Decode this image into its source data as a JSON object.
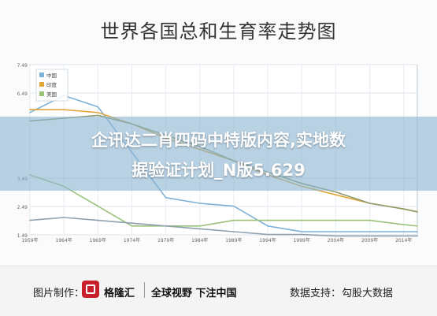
{
  "header": {
    "title": "世界各国总和生育率走势图"
  },
  "watermark": {
    "line1": "企讯达二肖四码中特版内容,实地数",
    "line2": "据验证计划_N版5.629"
  },
  "footer": {
    "made_by_label": "图片制作：",
    "brand": "格隆汇",
    "slogan": "全球视野 下注中国",
    "source_label": "数据支持：",
    "source": "勾股大数据"
  },
  "chart_data": {
    "type": "line",
    "title": "世界各国总和生育率走势图",
    "xlabel": "",
    "ylabel": "",
    "x": [
      1959,
      1964,
      1969,
      1974,
      1979,
      1984,
      1989,
      1994,
      1999,
      2004,
      2009,
      2014,
      2016
    ],
    "xticks": [
      "1959年",
      "1964年",
      "1969年",
      "1974年",
      "1979年",
      "1984年",
      "1989年",
      "1994年",
      "1999年",
      "2004年",
      "2009年",
      "2014年"
    ],
    "yticks": [
      "1.49",
      "2.49",
      "3.49",
      "6.49",
      "7.49"
    ],
    "xlim": [
      1959,
      2016
    ],
    "ylim": [
      1.49,
      7.49
    ],
    "grid": true,
    "legend": "top-left",
    "series": [
      {
        "name": "中国",
        "color": "#7db1d8",
        "values": [
          5.8,
          6.4,
          6.0,
          4.4,
          2.8,
          2.6,
          2.5,
          1.8,
          1.6,
          1.6,
          1.6,
          1.6,
          1.6
        ]
      },
      {
        "name": "印度",
        "color": "#e0a63c",
        "values": [
          5.9,
          5.9,
          5.8,
          5.4,
          4.9,
          4.5,
          4.1,
          3.6,
          3.2,
          2.9,
          2.6,
          2.4,
          2.3
        ]
      },
      {
        "name": "美国",
        "color": "#9bc27a",
        "values": [
          3.6,
          3.2,
          2.5,
          1.8,
          1.8,
          1.8,
          2.0,
          2.0,
          2.0,
          2.0,
          2.0,
          1.85,
          1.8
        ]
      },
      {
        "name": "",
        "color": "#8b9b6a",
        "values": [
          5.5,
          5.6,
          5.7,
          5.4,
          5.0,
          4.6,
          4.1,
          3.7,
          3.3,
          3.0,
          2.6,
          2.4,
          2.3
        ]
      },
      {
        "name": "",
        "color": "#8fa0ad",
        "values": [
          2.0,
          2.1,
          2.0,
          1.9,
          1.8,
          1.7,
          1.6,
          1.5,
          1.5,
          1.45,
          1.45,
          1.45,
          1.45
        ]
      }
    ]
  }
}
